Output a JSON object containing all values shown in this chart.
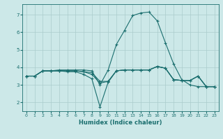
{
  "xlabel": "Humidex (Indice chaleur)",
  "background_color": "#cce8e8",
  "grid_color": "#aacccc",
  "line_color": "#1a6e6e",
  "xlim": [
    -0.5,
    23.5
  ],
  "ylim": [
    1.5,
    7.6
  ],
  "xticks": [
    0,
    1,
    2,
    3,
    4,
    5,
    6,
    7,
    8,
    9,
    10,
    11,
    12,
    13,
    14,
    15,
    16,
    17,
    18,
    19,
    20,
    21,
    22,
    23
  ],
  "yticks": [
    2,
    3,
    4,
    5,
    6,
    7
  ],
  "lines": [
    {
      "x": [
        0,
        1,
        2,
        3,
        4,
        5,
        6,
        7,
        8,
        9,
        10,
        11,
        12,
        13,
        14,
        15,
        16,
        17,
        18,
        19,
        20,
        21,
        22,
        23
      ],
      "y": [
        3.5,
        3.5,
        3.8,
        3.8,
        3.8,
        3.8,
        3.8,
        3.75,
        3.7,
        3.2,
        3.2,
        3.8,
        3.85,
        3.85,
        3.85,
        3.85,
        4.05,
        3.95,
        3.3,
        3.25,
        3.25,
        3.5,
        2.9,
        2.9
      ]
    },
    {
      "x": [
        0,
        1,
        2,
        3,
        4,
        5,
        6,
        7,
        8,
        9,
        10,
        11,
        12,
        13,
        14,
        15,
        16,
        17,
        18,
        19,
        20,
        21,
        22,
        23
      ],
      "y": [
        3.5,
        3.5,
        3.8,
        3.8,
        3.8,
        3.8,
        3.8,
        3.75,
        3.6,
        3.1,
        3.2,
        3.8,
        3.85,
        3.85,
        3.85,
        3.85,
        4.05,
        3.95,
        3.3,
        3.25,
        3.25,
        3.5,
        2.9,
        2.9
      ]
    },
    {
      "x": [
        0,
        1,
        2,
        3,
        4,
        5,
        6,
        7,
        8,
        9,
        10,
        11,
        12,
        13,
        14,
        15,
        16,
        17,
        18,
        19,
        20,
        21,
        22,
        23
      ],
      "y": [
        3.5,
        3.5,
        3.8,
        3.8,
        3.8,
        3.75,
        3.75,
        3.6,
        3.35,
        1.75,
        3.15,
        3.8,
        3.85,
        3.85,
        3.85,
        3.85,
        4.05,
        3.95,
        3.3,
        3.25,
        3.25,
        3.5,
        2.9,
        2.9
      ]
    },
    {
      "x": [
        0,
        1,
        2,
        3,
        4,
        5,
        6,
        7,
        8,
        9,
        10,
        11,
        12,
        13,
        14,
        15,
        16,
        17,
        18,
        19,
        20,
        21,
        22,
        23
      ],
      "y": [
        3.5,
        3.5,
        3.8,
        3.8,
        3.85,
        3.85,
        3.85,
        3.85,
        3.8,
        3.0,
        3.85,
        5.3,
        6.1,
        6.95,
        7.1,
        7.15,
        6.65,
        5.4,
        4.2,
        3.3,
        3.0,
        2.9,
        2.9,
        2.9
      ]
    }
  ]
}
